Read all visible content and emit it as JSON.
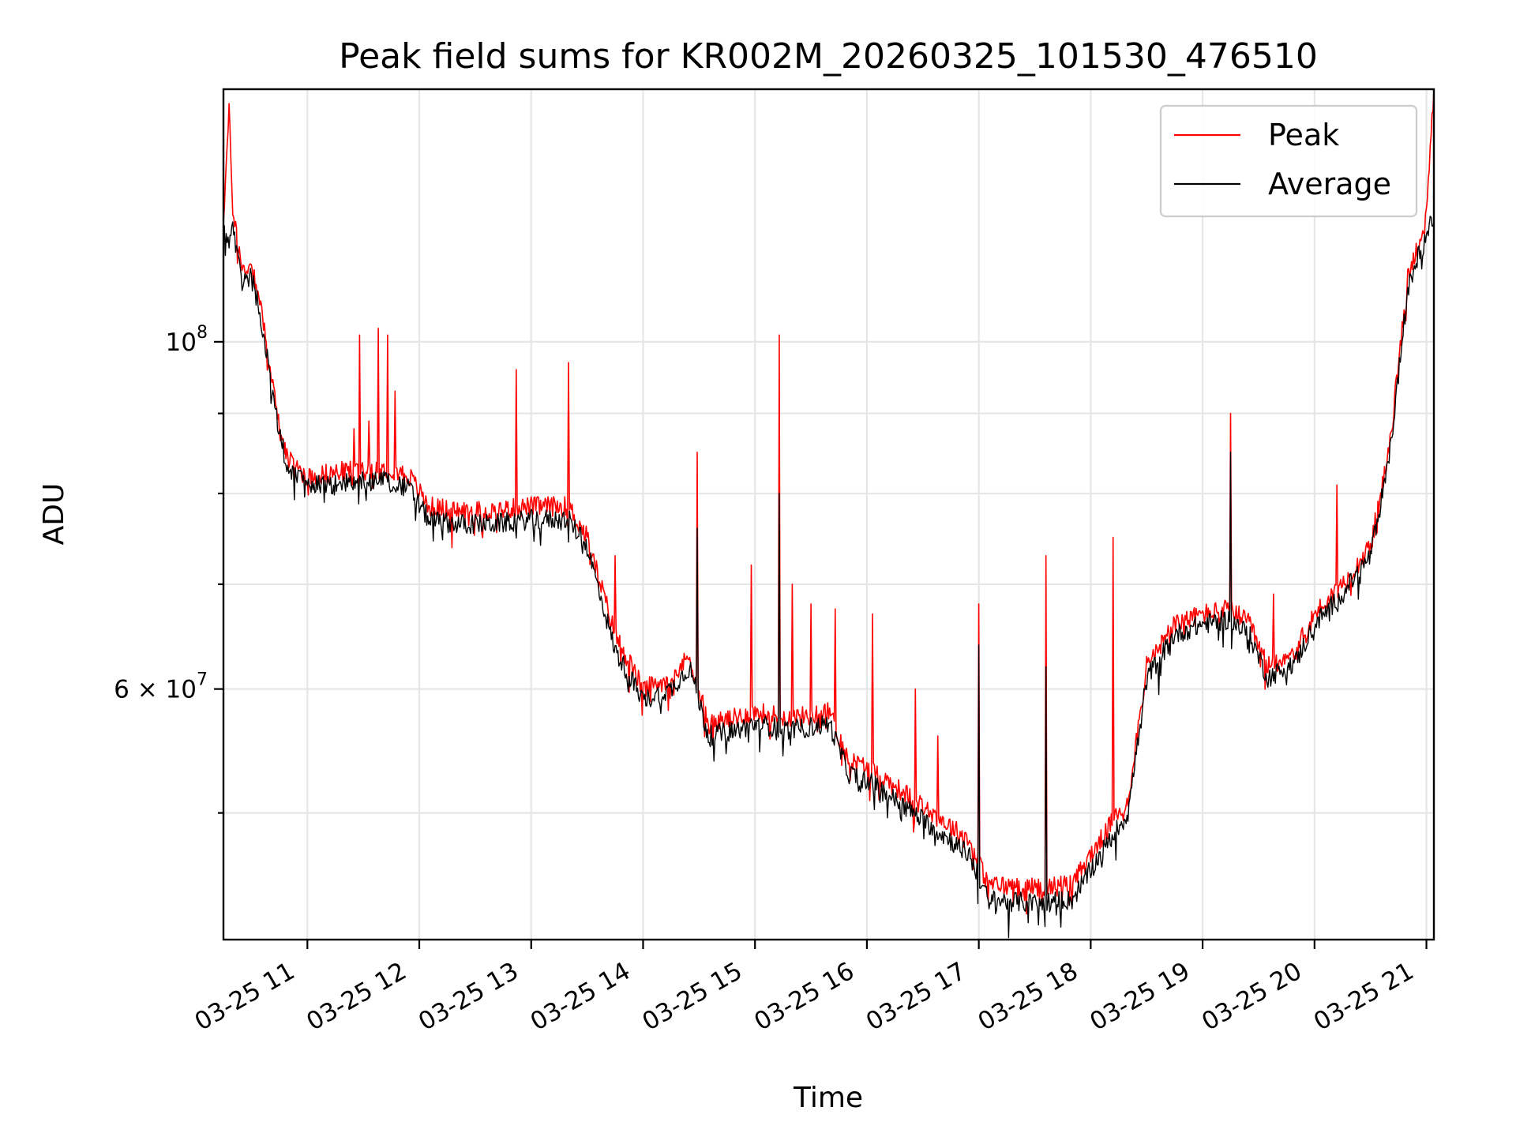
{
  "chart_data": {
    "type": "line",
    "title": "Peak field sums for KR002M_20260325_101530_476510",
    "xlabel": "Time",
    "ylabel": "ADU",
    "x_type": "time",
    "y_scale": "log",
    "xlim": [
      "2026-03-25 10:15",
      "2026-03-25 21:04"
    ],
    "ylim": [
      41500000,
      145000000
    ],
    "x_ticks": [
      {
        "t": "2026-03-25 11:00",
        "label": "03-25 11"
      },
      {
        "t": "2026-03-25 12:00",
        "label": "03-25 12"
      },
      {
        "t": "2026-03-25 13:00",
        "label": "03-25 13"
      },
      {
        "t": "2026-03-25 14:00",
        "label": "03-25 14"
      },
      {
        "t": "2026-03-25 15:00",
        "label": "03-25 15"
      },
      {
        "t": "2026-03-25 16:00",
        "label": "03-25 16"
      },
      {
        "t": "2026-03-25 17:00",
        "label": "03-25 17"
      },
      {
        "t": "2026-03-25 18:00",
        "label": "03-25 18"
      },
      {
        "t": "2026-03-25 19:00",
        "label": "03-25 19"
      },
      {
        "t": "2026-03-25 20:00",
        "label": "03-25 20"
      },
      {
        "t": "2026-03-25 21:00",
        "label": "03-25 21"
      }
    ],
    "y_major_ticks": [
      {
        "value": 100000000,
        "label_base": "10",
        "label_exp": "8"
      },
      {
        "value": 60000000,
        "label_base": "6 × 10",
        "label_exp": "7"
      }
    ],
    "y_minor_gridlines": [
      50000000,
      70000000,
      80000000,
      90000000
    ],
    "grid": true,
    "legend_position": "top-right",
    "series": [
      {
        "name": "Peak",
        "color": "#ff0000",
        "points": [
          [
            "2026-03-25 10:15",
            120000000
          ],
          [
            "2026-03-25 10:18",
            140000000
          ],
          [
            "2026-03-25 10:20",
            122000000
          ],
          [
            "2026-03-25 10:25",
            111000000
          ],
          [
            "2026-03-25 10:30",
            112000000
          ],
          [
            "2026-03-25 10:35",
            106000000
          ],
          [
            "2026-03-25 10:40",
            96000000
          ],
          [
            "2026-03-25 10:45",
            88000000
          ],
          [
            "2026-03-25 10:50",
            84000000
          ],
          [
            "2026-03-25 11:00",
            82000000
          ],
          [
            "2026-03-25 11:15",
            82500000
          ],
          [
            "2026-03-25 11:30",
            83000000
          ],
          [
            "2026-03-25 11:45",
            83000000
          ],
          [
            "2026-03-25 11:55",
            82000000
          ],
          [
            "2026-03-25 12:05",
            78500000
          ],
          [
            "2026-03-25 12:20",
            78000000
          ],
          [
            "2026-03-25 12:40",
            78000000
          ],
          [
            "2026-03-25 13:00",
            78500000
          ],
          [
            "2026-03-25 13:20",
            78500000
          ],
          [
            "2026-03-25 13:30",
            75000000
          ],
          [
            "2026-03-25 13:45",
            65000000
          ],
          [
            "2026-03-25 14:00",
            60000000
          ],
          [
            "2026-03-25 14:15",
            61000000
          ],
          [
            "2026-03-25 14:25",
            63000000
          ],
          [
            "2026-03-25 14:35",
            57000000
          ],
          [
            "2026-03-25 14:50",
            57500000
          ],
          [
            "2026-03-25 15:00",
            58000000
          ],
          [
            "2026-03-25 15:20",
            57500000
          ],
          [
            "2026-03-25 15:40",
            58000000
          ],
          [
            "2026-03-25 15:50",
            54000000
          ],
          [
            "2026-03-25 16:00",
            53500000
          ],
          [
            "2026-03-25 16:20",
            51500000
          ],
          [
            "2026-03-25 16:40",
            49500000
          ],
          [
            "2026-03-25 16:55",
            48000000
          ],
          [
            "2026-03-25 17:05",
            45000000
          ],
          [
            "2026-03-25 17:30",
            44800000
          ],
          [
            "2026-03-25 17:50",
            45000000
          ],
          [
            "2026-03-25 18:00",
            47000000
          ],
          [
            "2026-03-25 18:10",
            49000000
          ],
          [
            "2026-03-25 18:20",
            51000000
          ],
          [
            "2026-03-25 18:30",
            62000000
          ],
          [
            "2026-03-25 18:45",
            66000000
          ],
          [
            "2026-03-25 19:00",
            67000000
          ],
          [
            "2026-03-25 19:15",
            67500000
          ],
          [
            "2026-03-25 19:25",
            66000000
          ],
          [
            "2026-03-25 19:35",
            62000000
          ],
          [
            "2026-03-25 19:50",
            63500000
          ],
          [
            "2026-03-25 20:00",
            67000000
          ],
          [
            "2026-03-25 20:15",
            70000000
          ],
          [
            "2026-03-25 20:30",
            74000000
          ],
          [
            "2026-03-25 20:40",
            85000000
          ],
          [
            "2026-03-25 20:50",
            110000000
          ],
          [
            "2026-03-25 21:00",
            120000000
          ],
          [
            "2026-03-25 21:04",
            145000000
          ]
        ],
        "spikes": [
          [
            "2026-03-25 11:25",
            88000000
          ],
          [
            "2026-03-25 11:28",
            101000000
          ],
          [
            "2026-03-25 11:33",
            89000000
          ],
          [
            "2026-03-25 11:38",
            102000000
          ],
          [
            "2026-03-25 11:43",
            101000000
          ],
          [
            "2026-03-25 11:47",
            93000000
          ],
          [
            "2026-03-25 12:52",
            96000000
          ],
          [
            "2026-03-25 13:20",
            97000000
          ],
          [
            "2026-03-25 13:45",
            73000000
          ],
          [
            "2026-03-25 14:29",
            85000000
          ],
          [
            "2026-03-25 14:58",
            72000000
          ],
          [
            "2026-03-25 15:13",
            101000000
          ],
          [
            "2026-03-25 15:20",
            70000000
          ],
          [
            "2026-03-25 15:30",
            68000000
          ],
          [
            "2026-03-25 15:43",
            67500000
          ],
          [
            "2026-03-25 16:03",
            67000000
          ],
          [
            "2026-03-25 16:26",
            60000000
          ],
          [
            "2026-03-25 16:38",
            56000000
          ],
          [
            "2026-03-25 17:00",
            68000000
          ],
          [
            "2026-03-25 17:36",
            73000000
          ],
          [
            "2026-03-25 18:12",
            75000000
          ],
          [
            "2026-03-25 19:15",
            90000000
          ],
          [
            "2026-03-25 19:38",
            69000000
          ],
          [
            "2026-03-25 20:12",
            81000000
          ]
        ]
      },
      {
        "name": "Average",
        "color": "#000000",
        "points": [
          [
            "2026-03-25 10:15",
            118000000
          ],
          [
            "2026-03-25 10:18",
            116000000
          ],
          [
            "2026-03-25 10:20",
            118000000
          ],
          [
            "2026-03-25 10:25",
            109000000
          ],
          [
            "2026-03-25 10:30",
            110000000
          ],
          [
            "2026-03-25 10:35",
            104000000
          ],
          [
            "2026-03-25 10:40",
            95000000
          ],
          [
            "2026-03-25 10:45",
            87000000
          ],
          [
            "2026-03-25 10:50",
            83000000
          ],
          [
            "2026-03-25 11:00",
            81000000
          ],
          [
            "2026-03-25 11:15",
            81000000
          ],
          [
            "2026-03-25 11:30",
            81500000
          ],
          [
            "2026-03-25 11:45",
            81500000
          ],
          [
            "2026-03-25 11:55",
            80500000
          ],
          [
            "2026-03-25 12:05",
            77000000
          ],
          [
            "2026-03-25 12:20",
            76500000
          ],
          [
            "2026-03-25 12:40",
            76500000
          ],
          [
            "2026-03-25 13:00",
            77000000
          ],
          [
            "2026-03-25 13:20",
            77000000
          ],
          [
            "2026-03-25 13:30",
            74000000
          ],
          [
            "2026-03-25 13:45",
            63500000
          ],
          [
            "2026-03-25 14:00",
            59000000
          ],
          [
            "2026-03-25 14:15",
            60000000
          ],
          [
            "2026-03-25 14:25",
            62000000
          ],
          [
            "2026-03-25 14:35",
            56000000
          ],
          [
            "2026-03-25 14:50",
            56500000
          ],
          [
            "2026-03-25 15:00",
            57000000
          ],
          [
            "2026-03-25 15:20",
            56500000
          ],
          [
            "2026-03-25 15:40",
            57000000
          ],
          [
            "2026-03-25 15:50",
            53000000
          ],
          [
            "2026-03-25 16:00",
            52500000
          ],
          [
            "2026-03-25 16:20",
            50500000
          ],
          [
            "2026-03-25 16:40",
            48500000
          ],
          [
            "2026-03-25 16:55",
            47000000
          ],
          [
            "2026-03-25 17:05",
            44000000
          ],
          [
            "2026-03-25 17:30",
            43800000
          ],
          [
            "2026-03-25 17:50",
            44000000
          ],
          [
            "2026-03-25 18:00",
            46000000
          ],
          [
            "2026-03-25 18:10",
            48000000
          ],
          [
            "2026-03-25 18:20",
            50000000
          ],
          [
            "2026-03-25 18:30",
            61000000
          ],
          [
            "2026-03-25 18:45",
            65000000
          ],
          [
            "2026-03-25 19:00",
            66000000
          ],
          [
            "2026-03-25 19:15",
            66500000
          ],
          [
            "2026-03-25 19:25",
            65000000
          ],
          [
            "2026-03-25 19:35",
            61000000
          ],
          [
            "2026-03-25 19:50",
            62500000
          ],
          [
            "2026-03-25 20:00",
            66000000
          ],
          [
            "2026-03-25 20:15",
            69000000
          ],
          [
            "2026-03-25 20:30",
            73000000
          ],
          [
            "2026-03-25 20:40",
            84000000
          ],
          [
            "2026-03-25 20:50",
            108000000
          ],
          [
            "2026-03-25 21:00",
            118000000
          ],
          [
            "2026-03-25 21:04",
            120000000
          ]
        ],
        "spikes": [
          [
            "2026-03-25 14:29",
            76000000
          ],
          [
            "2026-03-25 15:13",
            80000000
          ],
          [
            "2026-03-25 17:00",
            64000000
          ],
          [
            "2026-03-25 17:36",
            62000000
          ],
          [
            "2026-03-25 19:15",
            85000000
          ]
        ]
      }
    ]
  }
}
